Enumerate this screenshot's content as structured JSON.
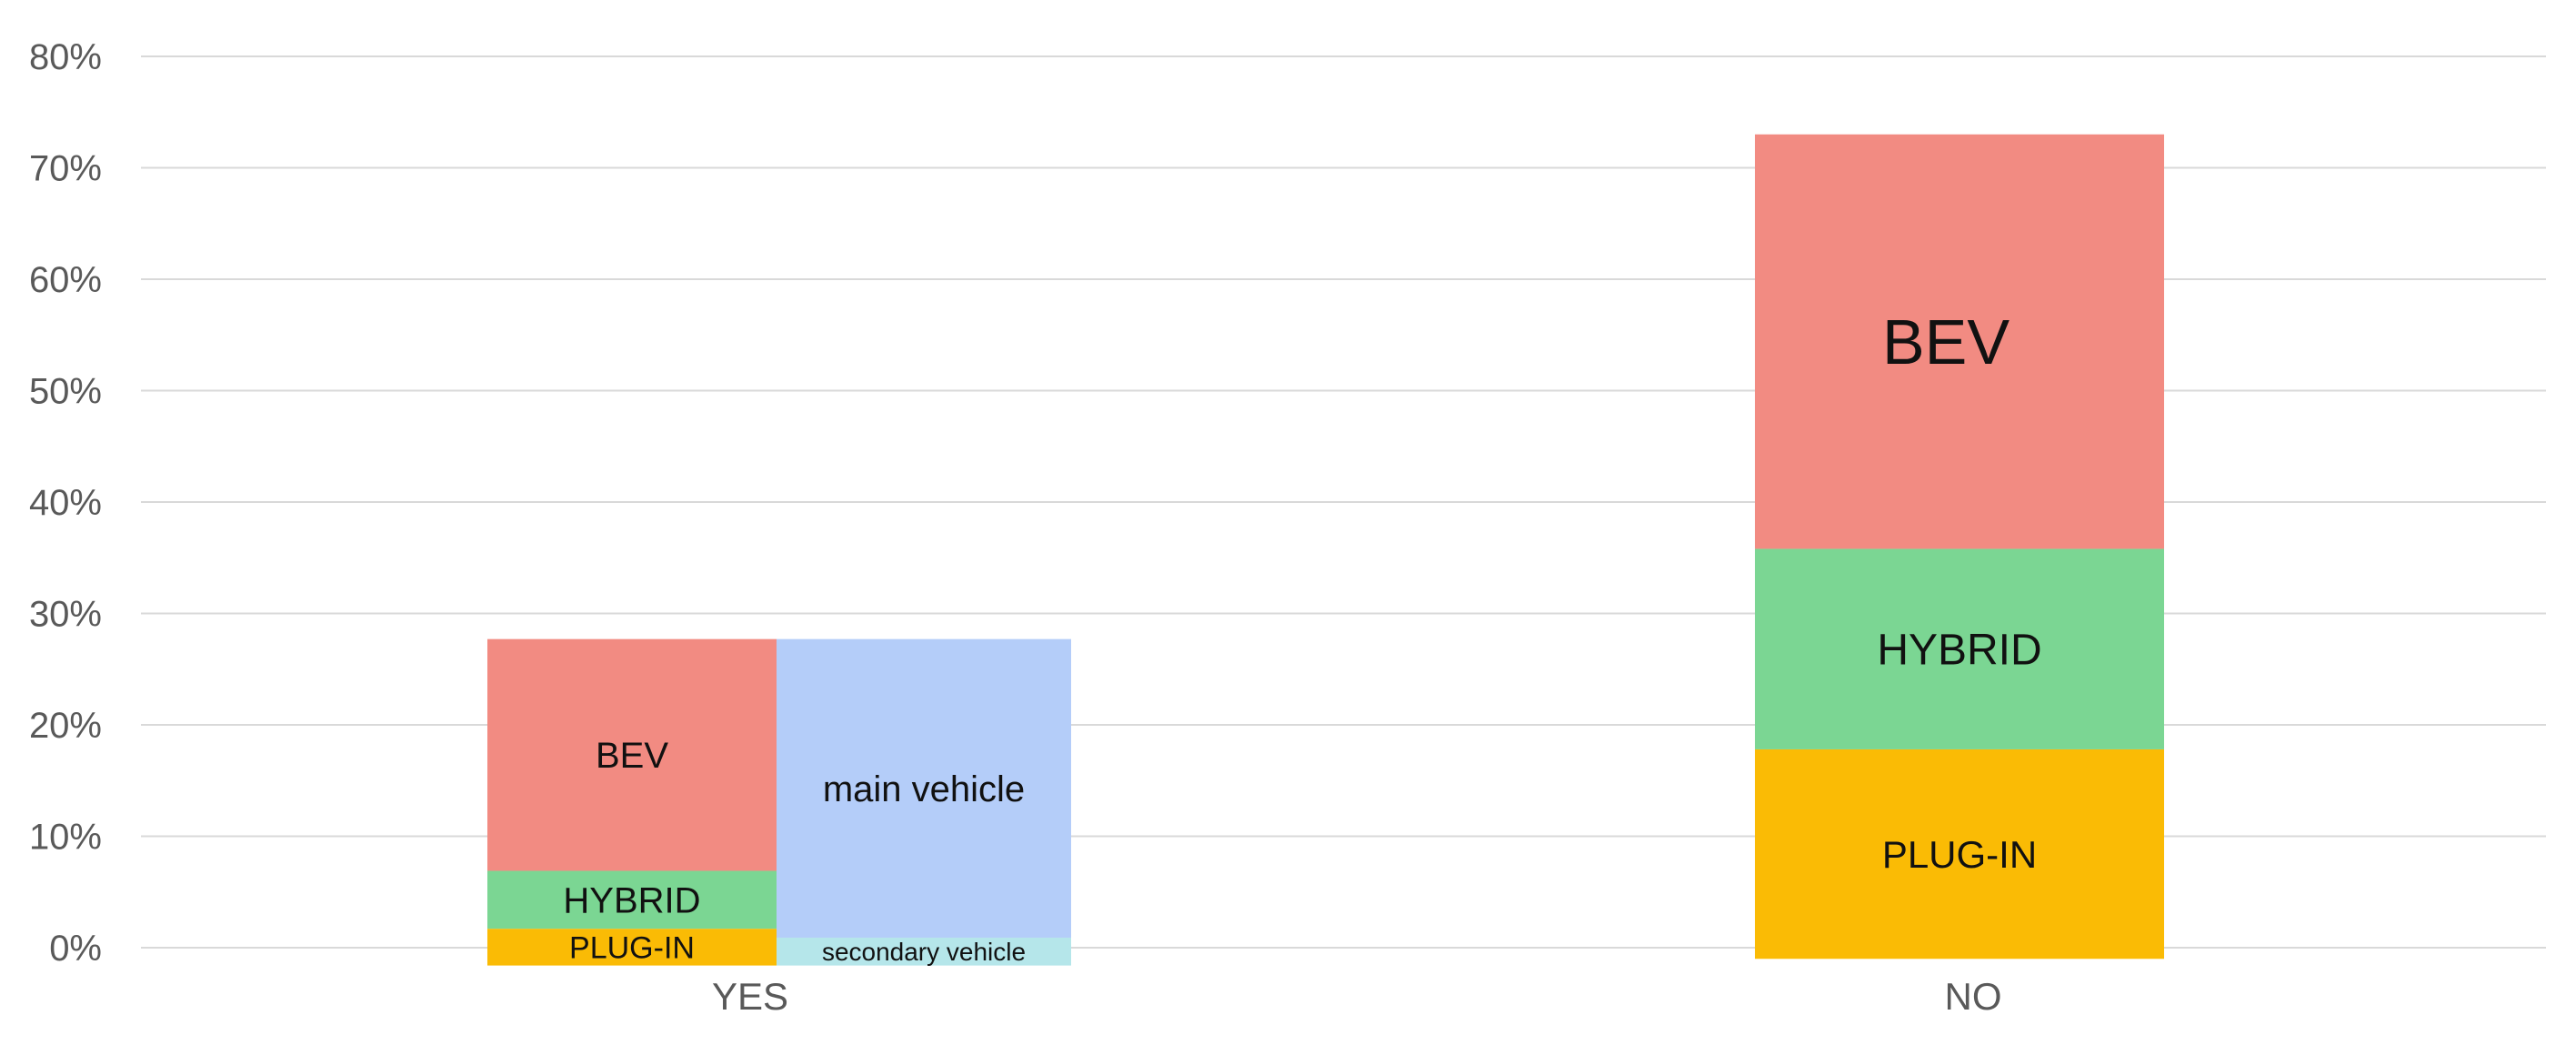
{
  "chart_data": {
    "type": "bar",
    "stacked": true,
    "title": "",
    "xlabel": "",
    "ylabel": "",
    "categories": [
      "YES",
      "NO"
    ],
    "ylim": [
      0,
      80
    ],
    "yticks": [
      "0%",
      "10%",
      "20%",
      "30%",
      "40%",
      "50%",
      "60%",
      "70%",
      "80%"
    ],
    "grid": true,
    "legend": "none",
    "bars": [
      {
        "category": "YES",
        "stack": "powertrain",
        "segments": [
          {
            "label": "PLUG-IN",
            "value": 1.7,
            "color": "#FABB05"
          },
          {
            "label": "HYBRID",
            "value": 5.2,
            "color": "#7BD693"
          },
          {
            "label": "BEV",
            "value": 20.8,
            "color": "#F28B82"
          }
        ]
      },
      {
        "category": "YES",
        "stack": "vehicle",
        "segments": [
          {
            "label": "secondary vehicle",
            "value": 0.9,
            "color": "#B5E6EA"
          },
          {
            "label": "main vehicle",
            "value": 26.8,
            "color": "#B4CDF9"
          }
        ]
      },
      {
        "category": "NO",
        "stack": "powertrain",
        "segments": [
          {
            "label": "PLUG-IN",
            "value": 17.8,
            "color": "#FABB05"
          },
          {
            "label": "HYBRID",
            "value": 18.0,
            "color": "#7BD693"
          },
          {
            "label": "BEV",
            "value": 37.2,
            "color": "#F28B82"
          }
        ]
      }
    ]
  }
}
